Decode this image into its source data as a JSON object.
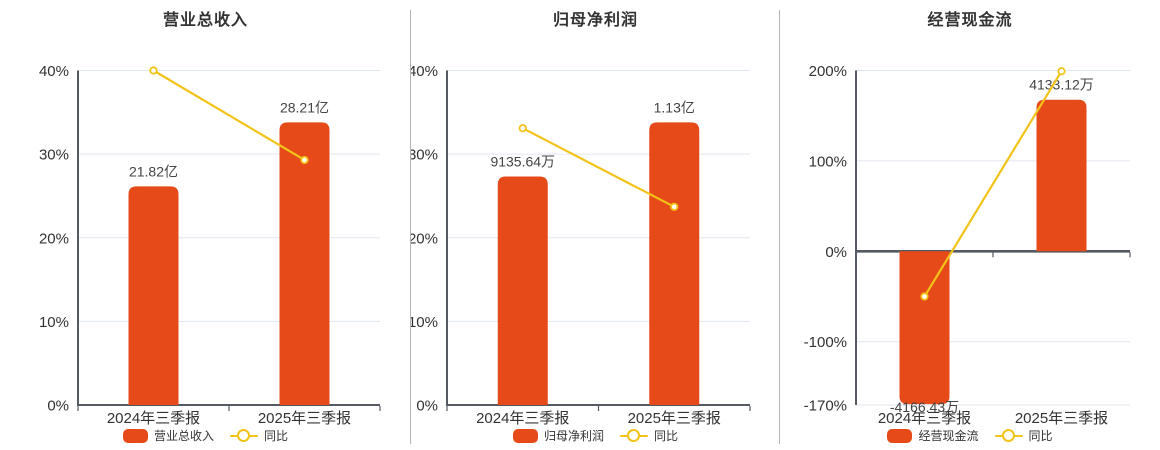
{
  "colors": {
    "bar": "#E64A19",
    "line": "#F2C318",
    "grid": "#E0E6EF",
    "axis": "#555A62",
    "divider": "#9A9A9A",
    "title_text": "#333333",
    "tick_text": "#333333",
    "value_text": "#444444",
    "legend_text": "#333333",
    "background": "#FFFFFF"
  },
  "chart_data": [
    {
      "type": "bar",
      "title": "营业总收入",
      "categories": [
        "2024年三季报",
        "2025年三季报"
      ],
      "series": [
        {
          "name": "营业总收入",
          "type": "bar",
          "unit": "亿",
          "values": [
            21.82,
            28.21
          ],
          "value_labels": [
            "21.82亿",
            "28.21亿"
          ]
        },
        {
          "name": "同比",
          "type": "line",
          "values_pct": [
            40.0,
            29.3
          ]
        }
      ],
      "ylim": [
        0,
        40
      ],
      "yticks": [
        0,
        10,
        20,
        30,
        40
      ],
      "ytick_labels": [
        "0%",
        "10%",
        "20%",
        "30%",
        "40%"
      ],
      "legend": [
        "营业总收入",
        "同比"
      ],
      "legend_position": "bottom",
      "grid": true
    },
    {
      "type": "bar",
      "title": "归母净利润",
      "categories": [
        "2024年三季报",
        "2025年三季报"
      ],
      "series": [
        {
          "name": "归母净利润",
          "type": "bar",
          "unit": "万",
          "values": [
            9135.64,
            11300
          ],
          "value_labels": [
            "9135.64万",
            "1.13亿"
          ]
        },
        {
          "name": "同比",
          "type": "line",
          "values_pct": [
            33.1,
            23.7
          ]
        }
      ],
      "ylim": [
        0,
        40
      ],
      "yticks": [
        0,
        10,
        20,
        30,
        40
      ],
      "ytick_labels": [
        "0%",
        "10%",
        "20%",
        "30%",
        "40%"
      ],
      "legend": [
        "归母净利润",
        "同比"
      ],
      "legend_position": "bottom",
      "grid": true
    },
    {
      "type": "bar",
      "title": "经营现金流",
      "categories": [
        "2024年三季报",
        "2025年三季报"
      ],
      "series": [
        {
          "name": "经营现金流",
          "type": "bar",
          "unit": "万",
          "values": [
            -4166.43,
            4133.12
          ],
          "value_labels": [
            "-4166.43万",
            "4133.12万"
          ]
        },
        {
          "name": "同比",
          "type": "line",
          "values_pct": [
            -50.0,
            199.2
          ]
        }
      ],
      "ylim": [
        -170,
        200
      ],
      "yticks": [
        -170,
        -100,
        0,
        100,
        200
      ],
      "ytick_labels": [
        "-170%",
        "-100%",
        "0%",
        "100%",
        "200%"
      ],
      "legend": [
        "经营现金流",
        "同比"
      ],
      "legend_position": "bottom",
      "grid": true
    }
  ]
}
